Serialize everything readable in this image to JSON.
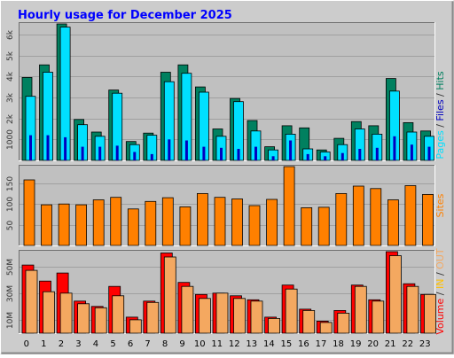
{
  "page": {
    "title": "Hourly usage for December 2025"
  },
  "colors": {
    "frame_bg": "#cccccc",
    "plot_bg": "#c0c0c0",
    "title": "#0000ff",
    "hits": "#00805f",
    "files": "#00e0ff",
    "pages": "#0000c0",
    "sites": "#ff8000",
    "volume": "#ff0000",
    "in_out_in": "#ffc000",
    "in_out_out": "#f4a860"
  },
  "chart_data": [
    {
      "type": "bar",
      "name": "hits-files-pages",
      "categories": [
        "0",
        "1",
        "2",
        "3",
        "4",
        "5",
        "6",
        "7",
        "8",
        "9",
        "10",
        "11",
        "12",
        "13",
        "14",
        "15",
        "16",
        "17",
        "18",
        "19",
        "20",
        "21",
        "22",
        "23"
      ],
      "y_ticks": [
        {
          "value": 1000,
          "label": "1000"
        },
        {
          "value": 2000,
          "label": "2k"
        },
        {
          "value": 3000,
          "label": "3k"
        },
        {
          "value": 4000,
          "label": "4k"
        },
        {
          "value": 5000,
          "label": "5k"
        },
        {
          "value": 6000,
          "label": "6k"
        }
      ],
      "ylim": [
        0,
        6500
      ],
      "ylabel_parts": [
        "Pages",
        " / ",
        "Files",
        " / ",
        "Hits"
      ],
      "series": [
        {
          "name": "Hits",
          "values": [
            3950,
            4550,
            6500,
            1950,
            1350,
            3350,
            900,
            1300,
            4200,
            4550,
            3500,
            1500,
            2950,
            1900,
            650,
            1650,
            1550,
            500,
            1050,
            1850,
            1650,
            3900,
            1800,
            1400
          ]
        },
        {
          "name": "Files",
          "values": [
            3050,
            4200,
            6350,
            1700,
            1150,
            3200,
            750,
            1200,
            3750,
            4150,
            3250,
            1150,
            2800,
            1400,
            500,
            1250,
            550,
            400,
            750,
            1500,
            1250,
            3300,
            1350,
            1150
          ]
        },
        {
          "name": "Pages",
          "values": [
            1200,
            1200,
            1100,
            650,
            650,
            700,
            400,
            300,
            1000,
            950,
            650,
            600,
            550,
            650,
            200,
            950,
            300,
            200,
            350,
            550,
            600,
            1150,
            750,
            650
          ]
        }
      ]
    },
    {
      "type": "bar",
      "name": "sites",
      "categories": [
        "0",
        "1",
        "2",
        "3",
        "4",
        "5",
        "6",
        "7",
        "8",
        "9",
        "10",
        "11",
        "12",
        "13",
        "14",
        "15",
        "16",
        "17",
        "18",
        "19",
        "20",
        "21",
        "22",
        "23"
      ],
      "y_ticks": [
        {
          "value": 50,
          "label": "50"
        },
        {
          "value": 100,
          "label": "100"
        },
        {
          "value": 150,
          "label": "150"
        }
      ],
      "ylim": [
        0,
        190
      ],
      "ylabel": "Sites",
      "series": [
        {
          "name": "Sites",
          "values": [
            158,
            98,
            100,
            98,
            110,
            116,
            88,
            106,
            115,
            93,
            125,
            116,
            112,
            96,
            111,
            190,
            91,
            92,
            125,
            143,
            137,
            110,
            144,
            123
          ]
        }
      ]
    },
    {
      "type": "bar",
      "name": "volume-in-out",
      "categories": [
        "0",
        "1",
        "2",
        "3",
        "4",
        "5",
        "6",
        "7",
        "8",
        "9",
        "10",
        "11",
        "12",
        "13",
        "14",
        "15",
        "16",
        "17",
        "18",
        "19",
        "20",
        "21",
        "22",
        "23"
      ],
      "y_ticks": [
        {
          "value": 10,
          "label": "10M"
        },
        {
          "value": 30,
          "label": "30M"
        },
        {
          "value": 50,
          "label": "50M"
        }
      ],
      "ylim": [
        0,
        61
      ],
      "ylabel_parts": [
        "Volume",
        " / ",
        "IN",
        " / ",
        "OUT"
      ],
      "series": [
        {
          "name": "Volume",
          "values": [
            51,
            39,
            45,
            24,
            20,
            35,
            12,
            24,
            60,
            38,
            29,
            30,
            28,
            25,
            12,
            36,
            18,
            9,
            17,
            36,
            25,
            61,
            37,
            29
          ]
        },
        {
          "name": "OUT",
          "values": [
            47,
            31,
            30,
            22,
            19,
            28,
            10,
            23,
            57,
            35,
            26,
            30,
            26,
            24,
            11,
            33,
            17,
            8,
            15,
            35,
            24,
            58,
            35,
            29
          ]
        }
      ]
    }
  ]
}
